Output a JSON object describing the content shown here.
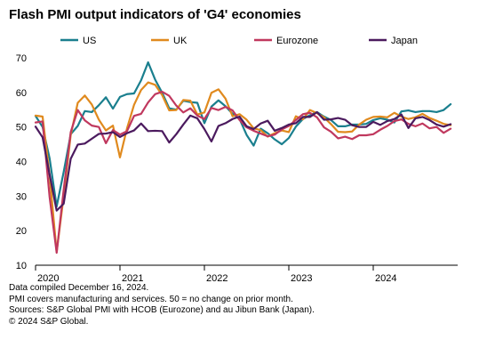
{
  "title": "Flash PMI output indicators of 'G4' economies",
  "footnotes": [
    "Data compiled December 16, 2024.",
    "PMI covers manufacturing and services. 50 = no change on prior month.",
    "Sources: S&P Global PMI with HCOB (Eurozone) and au Jibun Bank (Japan).",
    "© 2024 S&P Global."
  ],
  "chart_data": {
    "type": "line",
    "title": "Flash PMI output indicators of 'G4' economies",
    "xlabel": "",
    "ylabel": "",
    "ylim": [
      10,
      70
    ],
    "y_ticks": [
      10,
      20,
      30,
      40,
      50,
      60,
      70
    ],
    "x_ticks": [
      "2020",
      "2021",
      "2022",
      "2023",
      "2024"
    ],
    "x_start": "2020-01",
    "x_end": "2024-12",
    "grid": false,
    "legend": "top",
    "series": [
      {
        "name": "US",
        "color": "#1a7f8e",
        "values": [
          53.2,
          50.0,
          40.9,
          27.0,
          37.0,
          47.9,
          50.3,
          54.6,
          54.3,
          56.3,
          58.6,
          55.3,
          58.7,
          59.5,
          59.7,
          63.5,
          68.7,
          63.7,
          59.9,
          55.4,
          55.0,
          57.6,
          57.2,
          57.0,
          51.1,
          55.9,
          57.7,
          56.0,
          53.8,
          52.3,
          47.7,
          44.6,
          49.5,
          48.2,
          46.4,
          45.0,
          46.8,
          50.1,
          52.3,
          53.4,
          54.3,
          53.0,
          52.0,
          50.2,
          50.2,
          50.7,
          50.7,
          50.9,
          52.0,
          52.5,
          52.1,
          51.3,
          54.5,
          54.8,
          54.3,
          54.6,
          54.6,
          54.3,
          54.9,
          56.6
        ]
      },
      {
        "name": "UK",
        "color": "#e08a1e",
        "values": [
          53.3,
          53.0,
          36.0,
          13.8,
          30.0,
          47.7,
          57.0,
          59.1,
          56.5,
          52.1,
          49.0,
          50.4,
          41.2,
          49.6,
          56.4,
          60.7,
          62.9,
          62.2,
          59.2,
          54.8,
          54.9,
          57.8,
          57.6,
          53.6,
          54.2,
          59.9,
          60.9,
          58.2,
          53.1,
          53.7,
          52.1,
          49.6,
          49.1,
          47.2,
          48.2,
          49.0,
          48.5,
          53.1,
          52.2,
          54.9,
          54.0,
          52.8,
          50.8,
          48.6,
          48.5,
          48.7,
          50.7,
          52.1,
          52.9,
          53.0,
          52.8,
          54.1,
          53.0,
          52.3,
          52.8,
          53.8,
          52.6,
          51.8,
          50.9,
          50.5
        ]
      },
      {
        "name": "Eurozone",
        "color": "#c0385e",
        "values": [
          51.3,
          51.6,
          29.7,
          13.6,
          31.9,
          48.5,
          54.9,
          51.9,
          50.4,
          50.0,
          45.3,
          49.1,
          47.8,
          48.8,
          53.2,
          53.8,
          57.1,
          59.5,
          60.2,
          59.0,
          56.2,
          54.2,
          55.4,
          53.3,
          52.3,
          55.5,
          54.9,
          55.8,
          54.8,
          52.0,
          49.9,
          48.9,
          48.1,
          47.3,
          47.8,
          49.3,
          50.3,
          52.0,
          53.7,
          54.1,
          52.8,
          49.9,
          48.6,
          46.7,
          47.2,
          46.5,
          47.6,
          47.6,
          47.9,
          49.2,
          50.3,
          51.7,
          52.2,
          50.9,
          50.2,
          51.0,
          49.6,
          50.0,
          48.3,
          49.5
        ]
      },
      {
        "name": "Japan",
        "color": "#4b1a5e",
        "values": [
          50.1,
          47.0,
          36.2,
          25.8,
          27.8,
          40.8,
          44.9,
          45.2,
          46.6,
          48.0,
          48.1,
          48.5,
          47.1,
          48.2,
          49.0,
          51.0,
          48.8,
          48.9,
          48.8,
          45.5,
          47.9,
          50.7,
          53.3,
          52.5,
          49.4,
          45.8,
          50.3,
          51.1,
          52.3,
          53.0,
          50.2,
          49.4,
          51.0,
          51.8,
          48.9,
          49.7,
          50.7,
          51.1,
          52.9,
          52.9,
          54.3,
          52.1,
          52.2,
          52.6,
          52.1,
          50.5,
          50.0,
          50.0,
          51.5,
          50.6,
          51.7,
          52.3,
          53.6,
          49.7,
          52.5,
          52.9,
          52.0,
          50.7,
          50.1,
          50.8
        ]
      }
    ]
  }
}
